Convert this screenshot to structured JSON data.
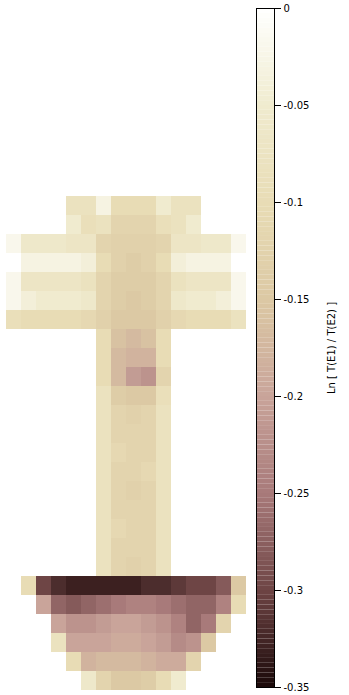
{
  "chart_data": {
    "type": "heatmap",
    "tick_labels": false,
    "cells": [
      [
        0,
        0,
        0,
        0,
        0,
        0,
        0,
        0,
        0,
        0,
        0,
        0,
        0,
        0,
        0,
        0
      ],
      [
        0,
        0,
        0,
        0,
        0,
        0,
        0,
        0,
        0,
        0,
        0,
        0,
        0,
        0,
        0,
        0
      ],
      [
        0,
        0,
        0,
        0,
        0,
        0,
        0,
        0,
        0,
        0,
        0,
        0,
        0,
        0,
        0,
        0
      ],
      [
        0,
        0,
        0,
        0,
        0,
        0,
        0,
        0,
        0,
        0,
        0,
        0,
        0,
        0,
        0,
        0
      ],
      [
        0,
        0,
        0,
        0,
        0,
        0,
        0,
        0,
        0,
        0,
        0,
        0,
        0,
        0,
        0,
        0
      ],
      [
        0,
        0,
        0,
        0,
        0,
        0,
        0,
        0,
        0,
        0,
        0,
        0,
        0,
        0,
        0,
        0
      ],
      [
        0,
        0,
        0,
        0,
        0,
        0,
        0,
        0,
        0,
        0,
        0,
        0,
        0,
        0,
        0,
        0
      ],
      [
        0,
        0,
        0,
        0,
        0,
        0,
        0,
        0,
        0,
        0,
        0,
        0,
        0,
        0,
        0,
        0
      ],
      [
        0,
        0,
        0,
        0,
        0,
        0,
        0,
        0,
        0,
        0,
        0,
        0,
        0,
        0,
        0,
        0
      ],
      [
        0,
        0,
        0,
        0,
        0,
        0,
        0,
        0,
        0,
        0,
        0,
        0,
        0,
        0,
        0,
        0
      ],
      [
        0,
        0,
        0,
        0,
        -0.08,
        -0.08,
        -0.03,
        -0.1,
        -0.1,
        -0.1,
        -0.05,
        -0.08,
        -0.08,
        0,
        0,
        0
      ],
      [
        0,
        0,
        0,
        0,
        -0.05,
        -0.09,
        -0.08,
        -0.12,
        -0.12,
        -0.12,
        -0.09,
        -0.08,
        -0.05,
        0,
        0,
        0
      ],
      [
        -0.02,
        -0.06,
        -0.06,
        -0.06,
        -0.07,
        -0.07,
        -0.12,
        -0.13,
        -0.13,
        -0.13,
        -0.12,
        -0.07,
        -0.07,
        -0.06,
        -0.06,
        -0.02
      ],
      [
        0,
        -0.03,
        -0.03,
        -0.03,
        -0.03,
        -0.04,
        -0.1,
        -0.13,
        -0.14,
        -0.13,
        -0.1,
        -0.04,
        -0.03,
        -0.03,
        -0.03,
        0
      ],
      [
        -0.02,
        -0.07,
        -0.07,
        -0.07,
        -0.07,
        -0.08,
        -0.12,
        -0.14,
        -0.14,
        -0.14,
        -0.12,
        -0.08,
        -0.07,
        -0.07,
        -0.07,
        -0.02
      ],
      [
        -0.02,
        -0.04,
        -0.05,
        -0.05,
        -0.05,
        -0.06,
        -0.12,
        -0.14,
        -0.15,
        -0.14,
        -0.12,
        -0.06,
        -0.05,
        -0.05,
        -0.04,
        -0.02
      ],
      [
        -0.09,
        -0.1,
        -0.1,
        -0.1,
        -0.1,
        -0.11,
        -0.13,
        -0.15,
        -0.15,
        -0.15,
        -0.13,
        -0.11,
        -0.1,
        -0.1,
        -0.1,
        -0.08
      ],
      [
        0,
        0,
        0,
        0,
        0,
        0,
        -0.1,
        -0.16,
        -0.17,
        -0.16,
        -0.1,
        0,
        0,
        0,
        0,
        0
      ],
      [
        0,
        0,
        0,
        0,
        0,
        0,
        -0.1,
        -0.17,
        -0.18,
        -0.18,
        -0.1,
        0,
        0,
        0,
        0,
        0
      ],
      [
        0,
        0,
        0,
        0,
        0,
        0,
        -0.1,
        -0.17,
        -0.21,
        -0.22,
        -0.12,
        0,
        0,
        0,
        0,
        0
      ],
      [
        0,
        0,
        0,
        0,
        0,
        0,
        -0.08,
        -0.14,
        -0.15,
        -0.15,
        -0.09,
        0,
        0,
        0,
        0,
        0
      ],
      [
        0,
        0,
        0,
        0,
        0,
        0,
        -0.08,
        -0.12,
        -0.13,
        -0.12,
        -0.08,
        0,
        0,
        0,
        0,
        0
      ],
      [
        0,
        0,
        0,
        0,
        0,
        0,
        -0.08,
        -0.12,
        -0.12,
        -0.12,
        -0.08,
        0,
        0,
        0,
        0,
        0
      ],
      [
        0,
        0,
        0,
        0,
        0,
        0,
        -0.08,
        -0.11,
        -0.12,
        -0.12,
        -0.08,
        0,
        0,
        0,
        0,
        0
      ],
      [
        0,
        0,
        0,
        0,
        0,
        0,
        -0.08,
        -0.12,
        -0.12,
        -0.11,
        -0.08,
        0,
        0,
        0,
        0,
        0
      ],
      [
        0,
        0,
        0,
        0,
        0,
        0,
        -0.08,
        -0.12,
        -0.13,
        -0.12,
        -0.08,
        0,
        0,
        0,
        0,
        0
      ],
      [
        0,
        0,
        0,
        0,
        0,
        0,
        -0.08,
        -0.12,
        -0.12,
        -0.12,
        -0.08,
        0,
        0,
        0,
        0,
        0
      ],
      [
        0,
        0,
        0,
        0,
        0,
        0,
        -0.08,
        -0.11,
        -0.12,
        -0.12,
        -0.08,
        0,
        0,
        0,
        0,
        0
      ],
      [
        0,
        0,
        0,
        0,
        0,
        0,
        -0.08,
        -0.12,
        -0.12,
        -0.12,
        -0.08,
        0,
        0,
        0,
        0,
        0
      ],
      [
        0,
        0,
        0,
        0,
        0,
        0,
        -0.08,
        -0.12,
        -0.13,
        -0.12,
        -0.08,
        0,
        0,
        0,
        0,
        0
      ],
      [
        0,
        -0.1,
        -0.3,
        -0.32,
        -0.33,
        -0.33,
        -0.33,
        -0.33,
        -0.33,
        -0.32,
        -0.32,
        -0.31,
        -0.3,
        -0.3,
        -0.28,
        -0.15
      ],
      [
        0,
        0,
        -0.2,
        -0.27,
        -0.28,
        -0.27,
        -0.26,
        -0.25,
        -0.24,
        -0.24,
        -0.25,
        -0.26,
        -0.27,
        -0.27,
        -0.24,
        -0.1
      ],
      [
        0,
        0,
        0,
        -0.2,
        -0.22,
        -0.22,
        -0.21,
        -0.2,
        -0.2,
        -0.21,
        -0.22,
        -0.24,
        -0.27,
        -0.25,
        -0.12,
        0
      ],
      [
        0,
        0,
        0,
        -0.08,
        -0.2,
        -0.2,
        -0.2,
        -0.19,
        -0.19,
        -0.2,
        -0.21,
        -0.23,
        -0.22,
        -0.15,
        0,
        0
      ],
      [
        0,
        0,
        0,
        0,
        -0.1,
        -0.18,
        -0.17,
        -0.17,
        -0.17,
        -0.18,
        -0.19,
        -0.19,
        -0.12,
        0,
        0,
        0
      ],
      [
        0,
        0,
        0,
        0,
        0,
        -0.06,
        -0.12,
        -0.15,
        -0.15,
        -0.14,
        -0.1,
        -0.05,
        0,
        0,
        0,
        0
      ]
    ],
    "colorbar": {
      "label": "Ln [ T(E1) / T(E2) ]",
      "lim": [
        -0.35,
        0
      ],
      "ticks": [
        0,
        -0.05,
        -0.1,
        -0.15,
        -0.2,
        -0.25,
        -0.3,
        -0.35
      ]
    }
  }
}
